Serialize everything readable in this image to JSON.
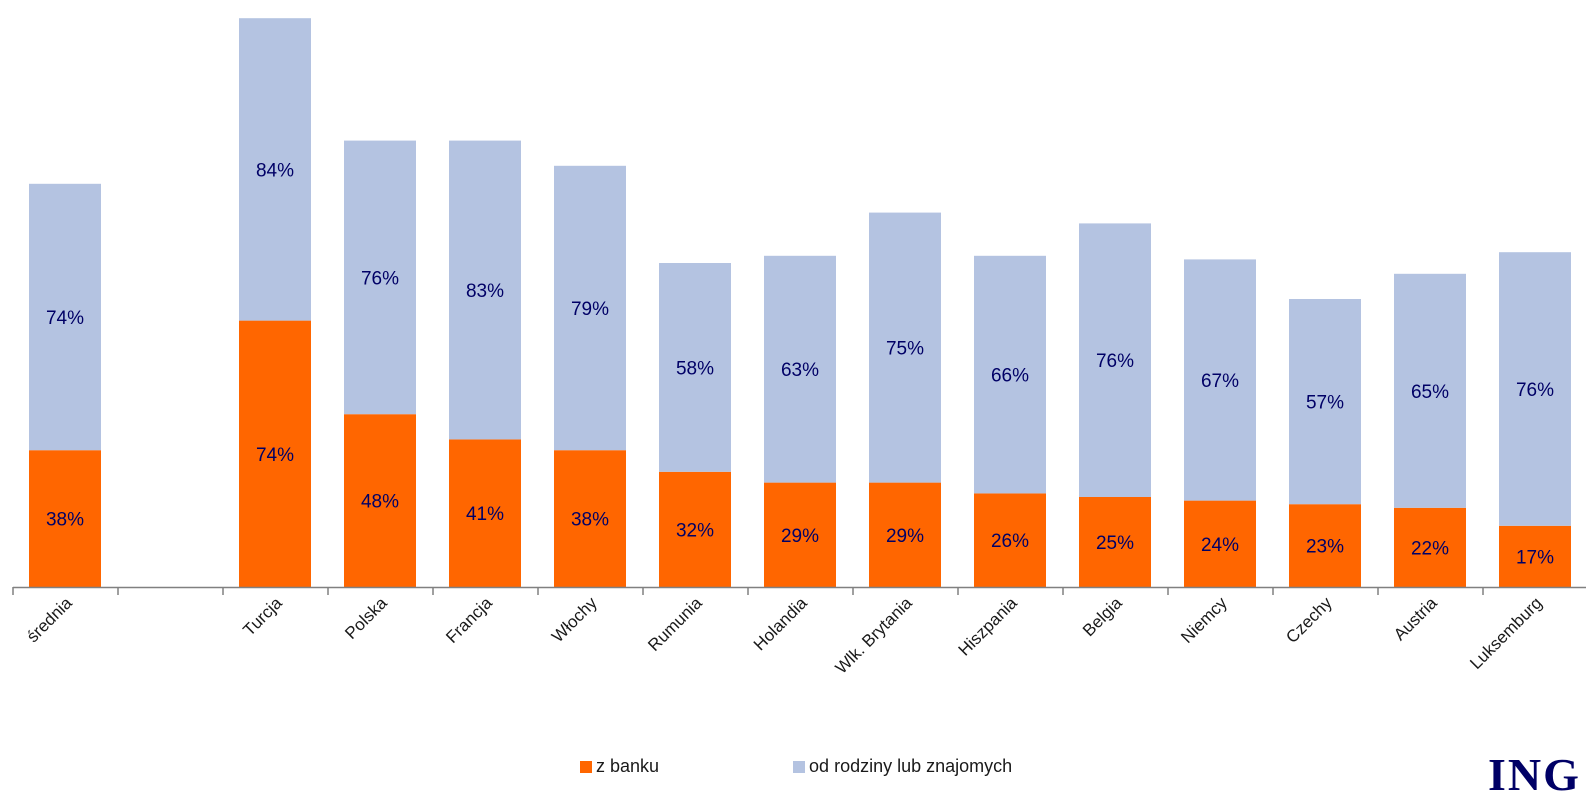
{
  "chart_data": {
    "type": "bar",
    "categories": [
      "średnia",
      "",
      "Turcja",
      "Polska",
      "Francja",
      "Włochy",
      "Rumunia",
      "Holandia",
      "Wlk. Brytania",
      "Hiszpania",
      "Belgia",
      "Niemcy",
      "Czechy",
      "Austria",
      "Luksemburg"
    ],
    "series": [
      {
        "name": "z banku",
        "color": "#ff6600",
        "values": [
          38,
          null,
          74,
          48,
          41,
          38,
          32,
          29,
          29,
          26,
          25,
          24,
          23,
          22,
          17
        ],
        "labels": [
          "38%",
          "",
          "74%",
          "48%",
          "41%",
          "38%",
          "32%",
          "29%",
          "29%",
          "26%",
          "25%",
          "24%",
          "23%",
          "22%",
          "17%"
        ]
      },
      {
        "name": "od rodziny lub znajomych",
        "color": "#b4c3e1",
        "values": [
          74,
          null,
          84,
          76,
          83,
          79,
          58,
          63,
          75,
          66,
          76,
          67,
          57,
          65,
          76
        ],
        "labels": [
          "74%",
          "",
          "84%",
          "76%",
          "83%",
          "79%",
          "58%",
          "63%",
          "75%",
          "66%",
          "76%",
          "67%",
          "57%",
          "65%",
          "76%"
        ]
      }
    ],
    "stacked": true,
    "label_color": "#000066",
    "legend_position": "bottom-center"
  },
  "logo": {
    "text": "ING"
  }
}
